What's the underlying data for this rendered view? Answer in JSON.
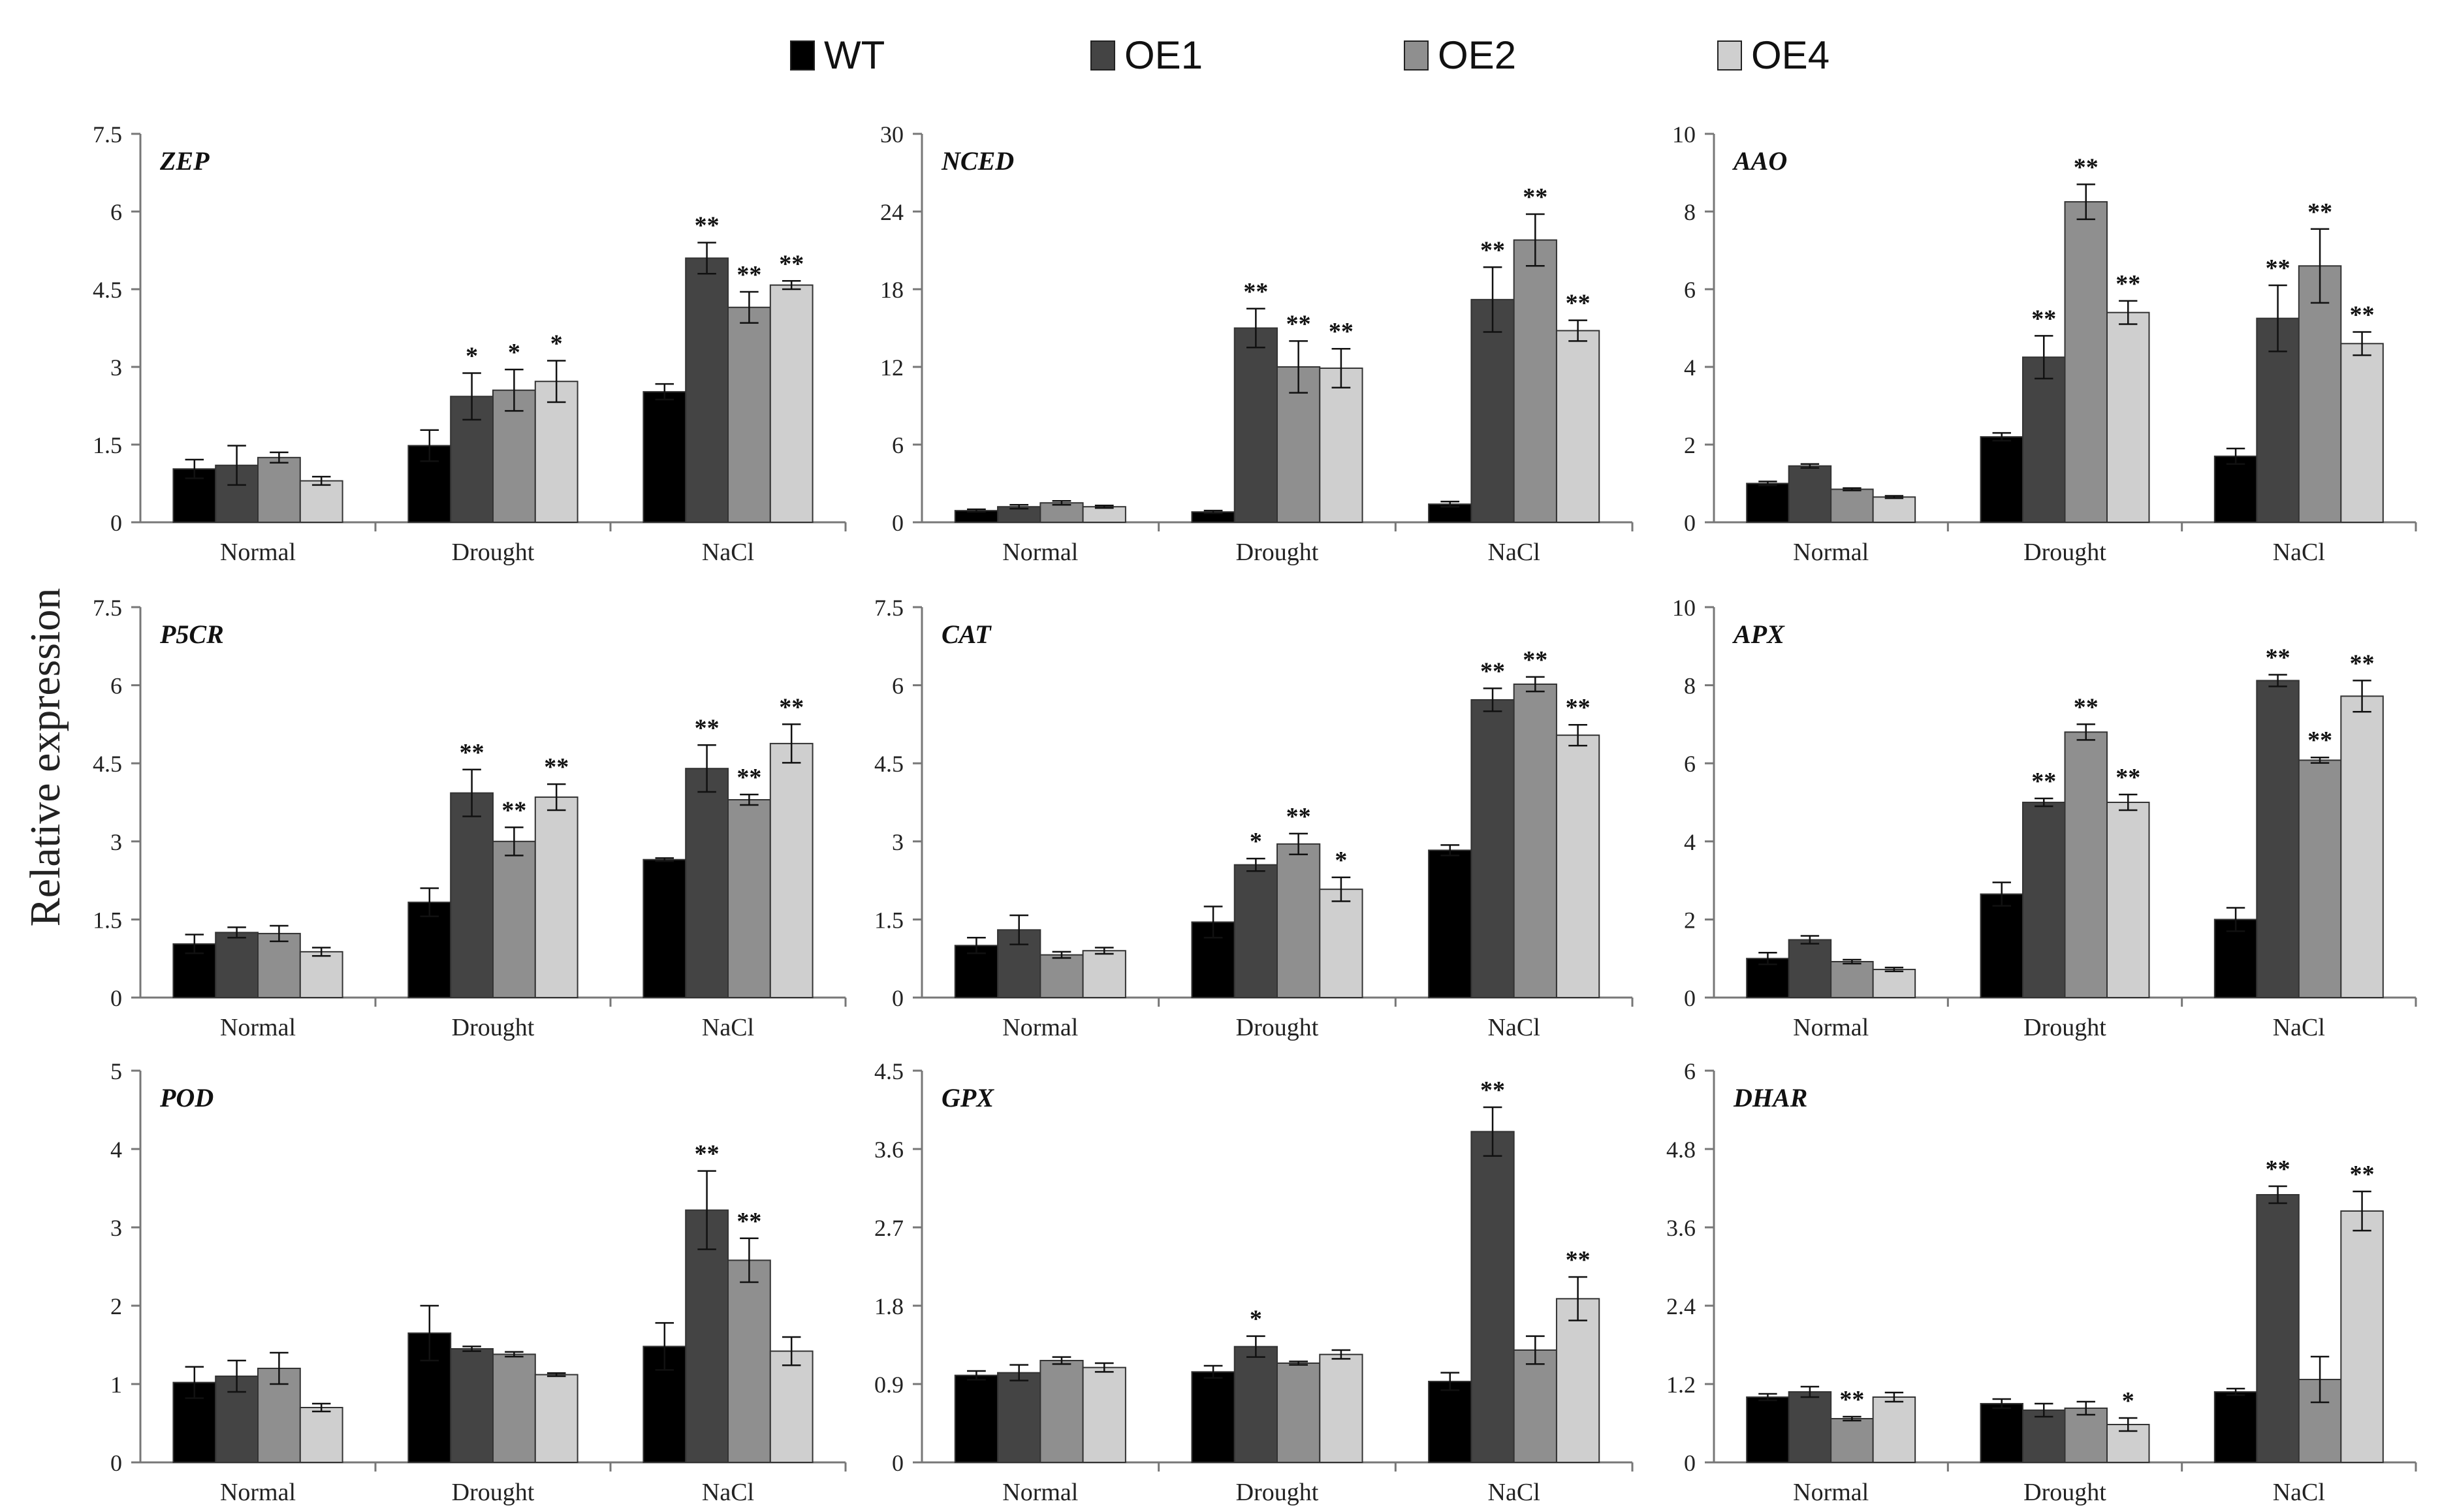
{
  "legend": {
    "items": [
      {
        "label": "WT",
        "color": "#000000"
      },
      {
        "label": "OE1",
        "color": "#444444"
      },
      {
        "label": "OE2",
        "color": "#8f8f8f"
      },
      {
        "label": "OE4",
        "color": "#cfcfcf"
      }
    ]
  },
  "y_axis_label": "Relative expression",
  "chart_data": [
    {
      "type": "bar",
      "title": "ZEP",
      "categories": [
        "Normal",
        "Drought",
        "NaCl"
      ],
      "ylim": [
        0,
        7.5
      ],
      "yticks": [
        "0",
        "1.5",
        "3",
        "4.5",
        "6",
        "7.5"
      ],
      "series": [
        {
          "name": "WT",
          "values": [
            1.03,
            1.48,
            2.52
          ],
          "errors": [
            0.18,
            0.3,
            0.15
          ],
          "sig": [
            "",
            "",
            ""
          ]
        },
        {
          "name": "OE1",
          "values": [
            1.1,
            2.43,
            5.1
          ],
          "errors": [
            0.38,
            0.45,
            0.3
          ],
          "sig": [
            "",
            "*",
            "**"
          ]
        },
        {
          "name": "OE2",
          "values": [
            1.25,
            2.55,
            4.15
          ],
          "errors": [
            0.1,
            0.4,
            0.3
          ],
          "sig": [
            "",
            "*",
            "**"
          ]
        },
        {
          "name": "OE4",
          "values": [
            0.8,
            2.72,
            4.58
          ],
          "errors": [
            0.08,
            0.4,
            0.08
          ],
          "sig": [
            "",
            "*",
            "**"
          ]
        }
      ]
    },
    {
      "type": "bar",
      "title": "NCED",
      "categories": [
        "Normal",
        "Drought",
        "NaCl"
      ],
      "ylim": [
        0,
        30
      ],
      "yticks": [
        "0",
        "6",
        "12",
        "18",
        "24",
        "30"
      ],
      "series": [
        {
          "name": "WT",
          "values": [
            0.9,
            0.8,
            1.4
          ],
          "errors": [
            0.1,
            0.1,
            0.2
          ],
          "sig": [
            "",
            "",
            ""
          ]
        },
        {
          "name": "OE1",
          "values": [
            1.2,
            15.0,
            17.2
          ],
          "errors": [
            0.15,
            1.5,
            2.5
          ],
          "sig": [
            "",
            "**",
            "**"
          ]
        },
        {
          "name": "OE2",
          "values": [
            1.5,
            12.0,
            21.8
          ],
          "errors": [
            0.15,
            2.0,
            2.0
          ],
          "sig": [
            "",
            "**",
            "**"
          ]
        },
        {
          "name": "OE4",
          "values": [
            1.2,
            11.9,
            14.8
          ],
          "errors": [
            0.1,
            1.5,
            0.8
          ],
          "sig": [
            "",
            "**",
            "**"
          ]
        }
      ]
    },
    {
      "type": "bar",
      "title": "AAO",
      "categories": [
        "Normal",
        "Drought",
        "NaCl"
      ],
      "ylim": [
        0,
        10
      ],
      "yticks": [
        "0",
        "2",
        "4",
        "6",
        "8",
        "10"
      ],
      "series": [
        {
          "name": "WT",
          "values": [
            1.0,
            2.2,
            1.7
          ],
          "errors": [
            0.05,
            0.1,
            0.2
          ],
          "sig": [
            "",
            "",
            ""
          ]
        },
        {
          "name": "OE1",
          "values": [
            1.45,
            4.25,
            5.25
          ],
          "errors": [
            0.05,
            0.55,
            0.85
          ],
          "sig": [
            "",
            "**",
            "**"
          ]
        },
        {
          "name": "OE2",
          "values": [
            0.85,
            8.25,
            6.6
          ],
          "errors": [
            0.03,
            0.45,
            0.95
          ],
          "sig": [
            "",
            "**",
            "**"
          ]
        },
        {
          "name": "OE4",
          "values": [
            0.65,
            5.4,
            4.6
          ],
          "errors": [
            0.03,
            0.3,
            0.3
          ],
          "sig": [
            "",
            "**",
            "**"
          ]
        }
      ]
    },
    {
      "type": "bar",
      "title": "P5CR",
      "categories": [
        "Normal",
        "Drought",
        "NaCl"
      ],
      "ylim": [
        0,
        7.5
      ],
      "yticks": [
        "0",
        "1.5",
        "3",
        "4.5",
        "6",
        "7.5"
      ],
      "series": [
        {
          "name": "WT",
          "values": [
            1.03,
            1.83,
            2.65
          ],
          "errors": [
            0.18,
            0.27,
            0.03
          ],
          "sig": [
            "",
            "",
            ""
          ]
        },
        {
          "name": "OE1",
          "values": [
            1.25,
            3.93,
            4.4
          ],
          "errors": [
            0.1,
            0.45,
            0.45
          ],
          "sig": [
            "",
            "**",
            "**"
          ]
        },
        {
          "name": "OE2",
          "values": [
            1.23,
            3.0,
            3.8
          ],
          "errors": [
            0.15,
            0.27,
            0.1
          ],
          "sig": [
            "",
            "**",
            "**"
          ]
        },
        {
          "name": "OE4",
          "values": [
            0.88,
            3.85,
            4.88
          ],
          "errors": [
            0.08,
            0.25,
            0.37
          ],
          "sig": [
            "",
            "**",
            "**"
          ]
        }
      ]
    },
    {
      "type": "bar",
      "title": "CAT",
      "categories": [
        "Normal",
        "Drought",
        "NaCl"
      ],
      "ylim": [
        0,
        7.5
      ],
      "yticks": [
        "0",
        "1.5",
        "3",
        "4.5",
        "6",
        "7.5"
      ],
      "series": [
        {
          "name": "WT",
          "values": [
            1.0,
            1.45,
            2.83
          ],
          "errors": [
            0.15,
            0.3,
            0.1
          ],
          "sig": [
            "",
            "",
            ""
          ]
        },
        {
          "name": "OE1",
          "values": [
            1.3,
            2.55,
            5.72
          ],
          "errors": [
            0.28,
            0.12,
            0.22
          ],
          "sig": [
            "",
            "*",
            "**"
          ]
        },
        {
          "name": "OE2",
          "values": [
            0.82,
            2.95,
            6.02
          ],
          "errors": [
            0.06,
            0.2,
            0.14
          ],
          "sig": [
            "",
            "**",
            "**"
          ]
        },
        {
          "name": "OE4",
          "values": [
            0.9,
            2.08,
            5.04
          ],
          "errors": [
            0.06,
            0.23,
            0.2
          ],
          "sig": [
            "",
            "*",
            "**"
          ]
        }
      ]
    },
    {
      "type": "bar",
      "title": "APX",
      "categories": [
        "Normal",
        "Drought",
        "NaCl"
      ],
      "ylim": [
        0,
        10
      ],
      "yticks": [
        "0",
        "2",
        "4",
        "6",
        "8",
        "10"
      ],
      "series": [
        {
          "name": "WT",
          "values": [
            1.0,
            2.65,
            2.0
          ],
          "errors": [
            0.15,
            0.3,
            0.3
          ],
          "sig": [
            "",
            "",
            ""
          ]
        },
        {
          "name": "OE1",
          "values": [
            1.48,
            5.0,
            8.12
          ],
          "errors": [
            0.1,
            0.1,
            0.15
          ],
          "sig": [
            "",
            "**",
            "**"
          ]
        },
        {
          "name": "OE2",
          "values": [
            0.92,
            6.8,
            6.08
          ],
          "errors": [
            0.05,
            0.2,
            0.07
          ],
          "sig": [
            "",
            "**",
            "**"
          ]
        },
        {
          "name": "OE4",
          "values": [
            0.72,
            5.0,
            7.72
          ],
          "errors": [
            0.05,
            0.2,
            0.4
          ],
          "sig": [
            "",
            "**",
            "**"
          ]
        }
      ]
    },
    {
      "type": "bar",
      "title": "POD",
      "categories": [
        "Normal",
        "Drought",
        "NaCl"
      ],
      "ylim": [
        0,
        5
      ],
      "yticks": [
        "0",
        "1",
        "2",
        "3",
        "4",
        "5"
      ],
      "series": [
        {
          "name": "WT",
          "values": [
            1.02,
            1.65,
            1.48
          ],
          "errors": [
            0.2,
            0.35,
            0.3
          ],
          "sig": [
            "",
            "",
            ""
          ]
        },
        {
          "name": "OE1",
          "values": [
            1.1,
            1.45,
            3.22
          ],
          "errors": [
            0.2,
            0.03,
            0.5
          ],
          "sig": [
            "",
            "",
            "**"
          ]
        },
        {
          "name": "OE2",
          "values": [
            1.2,
            1.38,
            2.58
          ],
          "errors": [
            0.2,
            0.03,
            0.28
          ],
          "sig": [
            "",
            "",
            "**"
          ]
        },
        {
          "name": "OE4",
          "values": [
            0.7,
            1.12,
            1.42
          ],
          "errors": [
            0.05,
            0.02,
            0.18
          ],
          "sig": [
            "",
            "",
            ""
          ]
        }
      ]
    },
    {
      "type": "bar",
      "title": "GPX",
      "categories": [
        "Normal",
        "Drought",
        "NaCl"
      ],
      "ylim": [
        0,
        4.5
      ],
      "yticks": [
        "0",
        "0.9",
        "1.8",
        "2.7",
        "3.6",
        "4.5"
      ],
      "series": [
        {
          "name": "WT",
          "values": [
            1.0,
            1.04,
            0.93
          ],
          "errors": [
            0.05,
            0.07,
            0.1
          ],
          "sig": [
            "",
            "",
            ""
          ]
        },
        {
          "name": "OE1",
          "values": [
            1.03,
            1.33,
            3.8
          ],
          "errors": [
            0.09,
            0.12,
            0.28
          ],
          "sig": [
            "",
            "*",
            "**"
          ]
        },
        {
          "name": "OE2",
          "values": [
            1.17,
            1.14,
            1.29
          ],
          "errors": [
            0.04,
            0.02,
            0.16
          ],
          "sig": [
            "",
            "",
            ""
          ]
        },
        {
          "name": "OE4",
          "values": [
            1.09,
            1.24,
            1.88
          ],
          "errors": [
            0.05,
            0.05,
            0.25
          ],
          "sig": [
            "",
            "",
            "**"
          ]
        }
      ]
    },
    {
      "type": "bar",
      "title": "DHAR",
      "categories": [
        "Normal",
        "Drought",
        "NaCl"
      ],
      "ylim": [
        0,
        6
      ],
      "yticks": [
        "0",
        "1.2",
        "2.4",
        "3.6",
        "4.8",
        "6"
      ],
      "series": [
        {
          "name": "WT",
          "values": [
            1.0,
            0.9,
            1.08
          ],
          "errors": [
            0.05,
            0.07,
            0.05
          ],
          "sig": [
            "",
            "",
            ""
          ]
        },
        {
          "name": "OE1",
          "values": [
            1.08,
            0.8,
            4.1
          ],
          "errors": [
            0.08,
            0.1,
            0.13
          ],
          "sig": [
            "",
            "",
            "**"
          ]
        },
        {
          "name": "OE2",
          "values": [
            0.67,
            0.83,
            1.27
          ],
          "errors": [
            0.03,
            0.1,
            0.35
          ],
          "sig": [
            "**",
            "",
            ""
          ]
        },
        {
          "name": "OE4",
          "values": [
            1.0,
            0.58,
            3.85
          ],
          "errors": [
            0.07,
            0.1,
            0.3
          ],
          "sig": [
            "",
            "*",
            "**"
          ]
        }
      ]
    }
  ]
}
